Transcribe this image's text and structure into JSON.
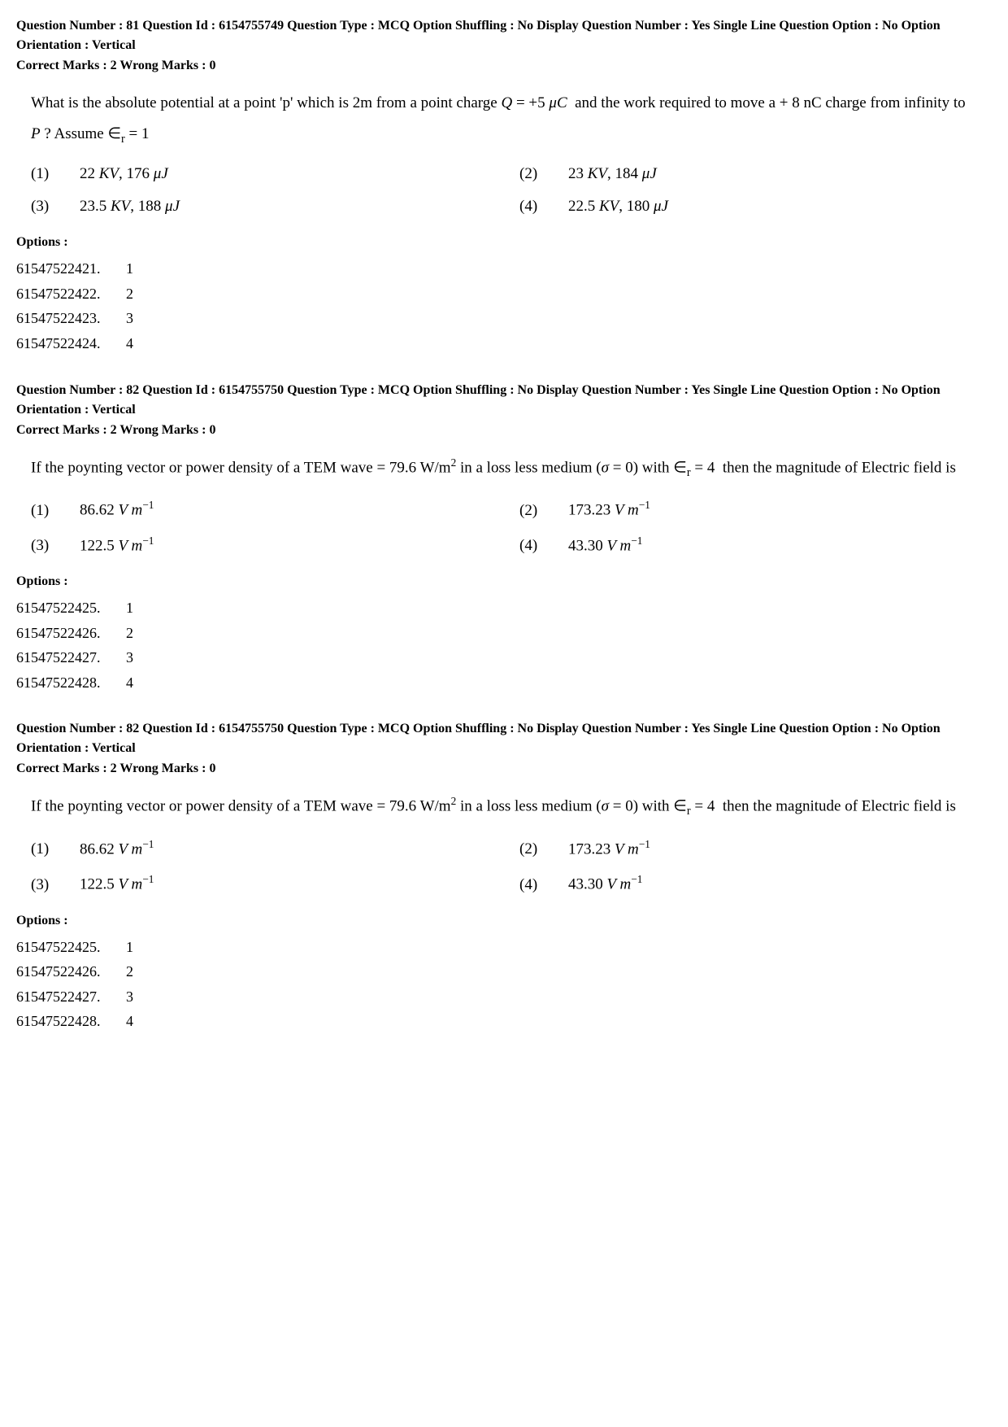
{
  "questions": [
    {
      "meta": {
        "question_number_label": "Question Number :",
        "question_number": "81",
        "question_id_label": "Question Id :",
        "question_id": "6154755749",
        "question_type_label": "Question Type :",
        "question_type": "MCQ",
        "option_shuffling_label": "Option Shuffling :",
        "option_shuffling": "No",
        "display_qn_label": "Display Question Number :",
        "display_qn": "Yes",
        "single_line_label": "Single Line Question Option :",
        "single_line": "No",
        "orientation_label": "Option Orientation :",
        "orientation": "Vertical",
        "correct_marks_label": "Correct Marks :",
        "correct_marks": "2",
        "wrong_marks_label": "Wrong Marks :",
        "wrong_marks": "0"
      },
      "question_html": "What is the absolute potential at a point 'p' which is 2m from a point charge <span class='italic'>Q</span> = +5 <span class='italic'>μC</span>&nbsp; and the work required to move a + 8 nC charge from infinity to <span class='italic'>P</span> ? Assume ∈<sub>r</sub> = 1",
      "choices": [
        {
          "num": "(1)",
          "text": "22 <span class='italic'>KV</span>, 176 <span class='italic'>μJ</span>"
        },
        {
          "num": "(2)",
          "text": "23 <span class='italic'>KV</span>, 184 <span class='italic'>μJ</span>"
        },
        {
          "num": "(3)",
          "text": "23.5 <span class='italic'>KV</span>, 188 <span class='italic'>μJ</span>"
        },
        {
          "num": "(4)",
          "text": "22.5 <span class='italic'>KV</span>, 180 <span class='italic'>μJ</span>"
        }
      ],
      "options_label": "Options :",
      "options": [
        {
          "id": "61547522421.",
          "val": "1"
        },
        {
          "id": "61547522422.",
          "val": "2"
        },
        {
          "id": "61547522423.",
          "val": "3"
        },
        {
          "id": "61547522424.",
          "val": "4"
        }
      ]
    },
    {
      "meta": {
        "question_number_label": "Question Number :",
        "question_number": "82",
        "question_id_label": "Question Id :",
        "question_id": "6154755750",
        "question_type_label": "Question Type :",
        "question_type": "MCQ",
        "option_shuffling_label": "Option Shuffling :",
        "option_shuffling": "No",
        "display_qn_label": "Display Question Number :",
        "display_qn": "Yes",
        "single_line_label": "Single Line Question Option :",
        "single_line": "No",
        "orientation_label": "Option Orientation :",
        "orientation": "Vertical",
        "correct_marks_label": "Correct Marks :",
        "correct_marks": "2",
        "wrong_marks_label": "Wrong Marks :",
        "wrong_marks": "0"
      },
      "question_html": "If the poynting vector or power density of a TEM wave = 79.6 W/m<sup>2</sup> in a loss less medium (<span class='italic'>σ</span> = 0) with ∈<sub>r</sub> = 4&nbsp; then the magnitude of Electric field is",
      "choices": [
        {
          "num": "(1)",
          "text": "86.62 <span class='italic'>V m</span><sup>−1</sup>"
        },
        {
          "num": "(2)",
          "text": "173.23 <span class='italic'>V m</span><sup>−1</sup>"
        },
        {
          "num": "(3)",
          "text": "122.5 <span class='italic'>V m</span><sup>−1</sup>"
        },
        {
          "num": "(4)",
          "text": "43.30 <span class='italic'>V m</span><sup>−1</sup>"
        }
      ],
      "options_label": "Options :",
      "options": [
        {
          "id": "61547522425.",
          "val": "1"
        },
        {
          "id": "61547522426.",
          "val": "2"
        },
        {
          "id": "61547522427.",
          "val": "3"
        },
        {
          "id": "61547522428.",
          "val": "4"
        }
      ]
    },
    {
      "meta": {
        "question_number_label": "Question Number :",
        "question_number": "82",
        "question_id_label": "Question Id :",
        "question_id": "6154755750",
        "question_type_label": "Question Type :",
        "question_type": "MCQ",
        "option_shuffling_label": "Option Shuffling :",
        "option_shuffling": "No",
        "display_qn_label": "Display Question Number :",
        "display_qn": "Yes",
        "single_line_label": "Single Line Question Option :",
        "single_line": "No",
        "orientation_label": "Option Orientation :",
        "orientation": "Vertical",
        "correct_marks_label": "Correct Marks :",
        "correct_marks": "2",
        "wrong_marks_label": "Wrong Marks :",
        "wrong_marks": "0"
      },
      "question_html": "If the poynting vector or power density of a TEM wave = 79.6 W/m<sup>2</sup> in a loss less medium (<span class='italic'>σ</span> = 0) with ∈<sub>r</sub> = 4&nbsp; then the magnitude of Electric field is",
      "choices": [
        {
          "num": "(1)",
          "text": "86.62 <span class='italic'>V m</span><sup>−1</sup>"
        },
        {
          "num": "(2)",
          "text": "173.23 <span class='italic'>V m</span><sup>−1</sup>"
        },
        {
          "num": "(3)",
          "text": "122.5 <span class='italic'>V m</span><sup>−1</sup>"
        },
        {
          "num": "(4)",
          "text": "43.30 <span class='italic'>V m</span><sup>−1</sup>"
        }
      ],
      "options_label": "Options :",
      "options": [
        {
          "id": "61547522425.",
          "val": "1"
        },
        {
          "id": "61547522426.",
          "val": "2"
        },
        {
          "id": "61547522427.",
          "val": "3"
        },
        {
          "id": "61547522428.",
          "val": "4"
        }
      ]
    }
  ]
}
